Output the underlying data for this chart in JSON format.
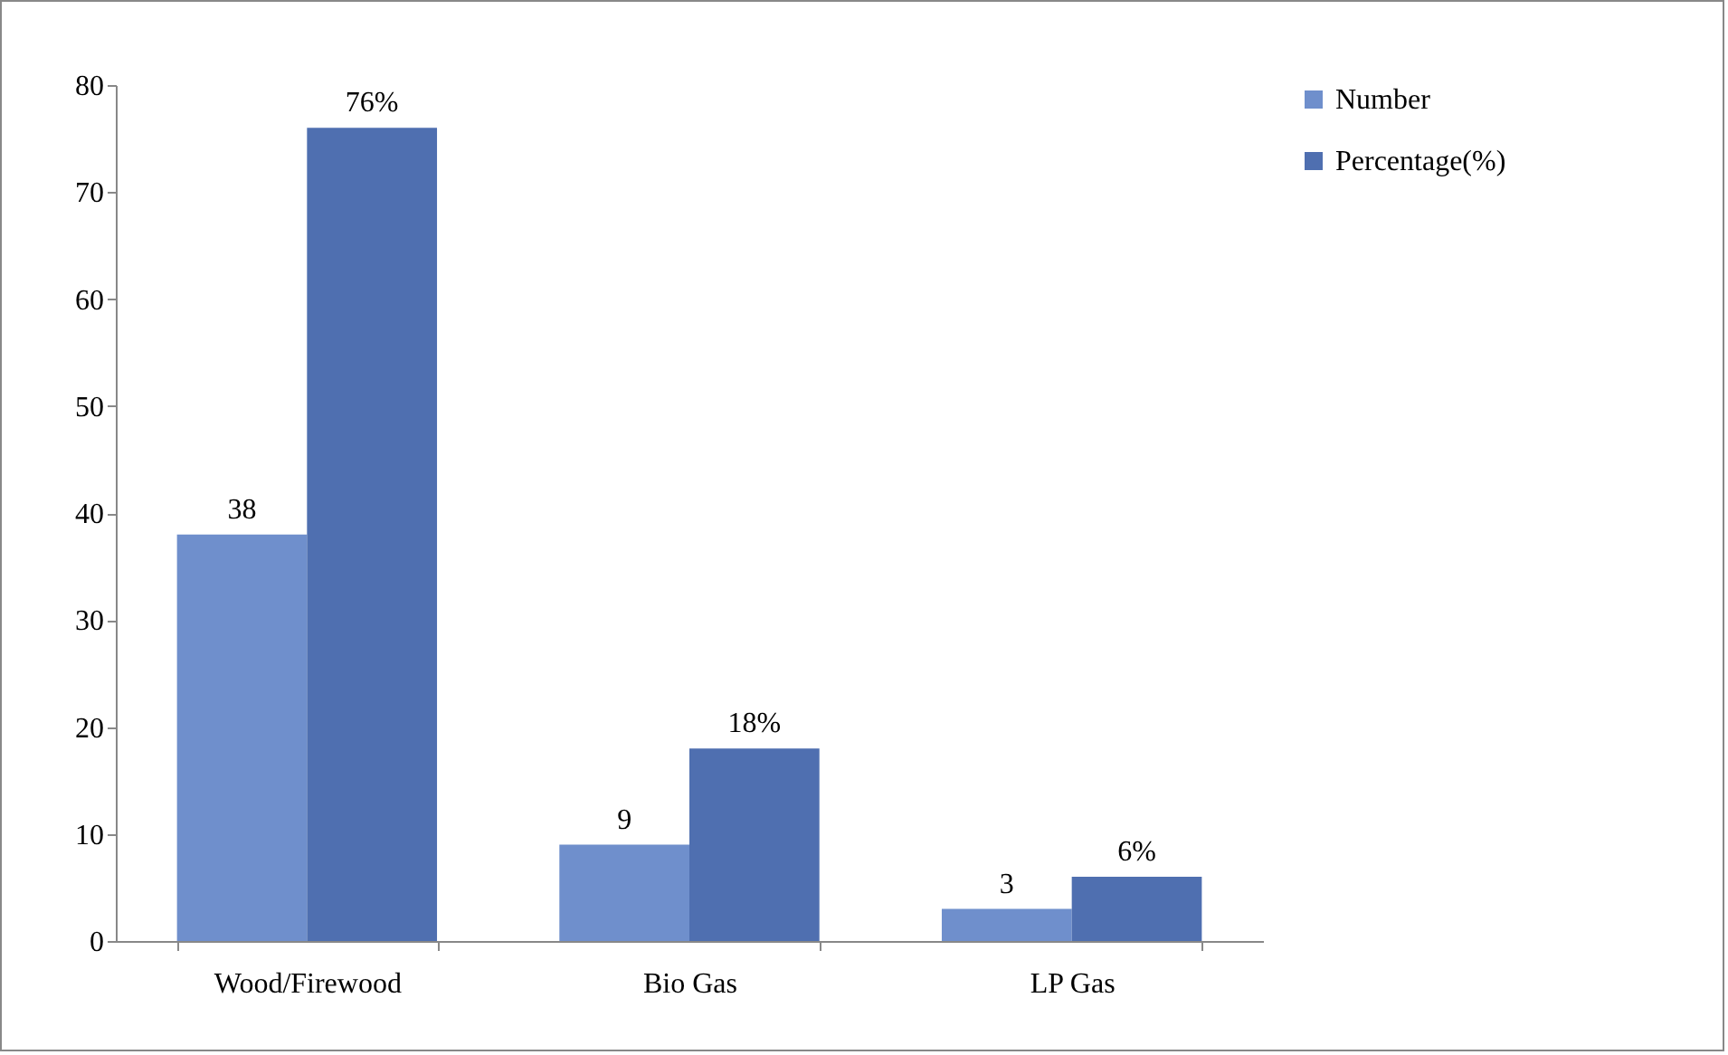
{
  "chart_data": {
    "type": "bar",
    "categories": [
      "Wood/Firewood",
      "Bio Gas",
      "LP Gas"
    ],
    "series": [
      {
        "name": "Number",
        "color": "#6f8fcc",
        "values": [
          38,
          9,
          3
        ],
        "value_labels": [
          "38",
          "9",
          "3"
        ]
      },
      {
        "name": "Percentage(%)",
        "color": "#4f6fb0",
        "values": [
          76,
          18,
          6
        ],
        "value_labels": [
          "76%",
          "18%",
          "6%"
        ]
      }
    ],
    "ylim": [
      0,
      80
    ],
    "yticks": [
      0,
      10,
      20,
      30,
      40,
      50,
      60,
      70,
      80
    ],
    "grid": false,
    "legend": "right"
  }
}
